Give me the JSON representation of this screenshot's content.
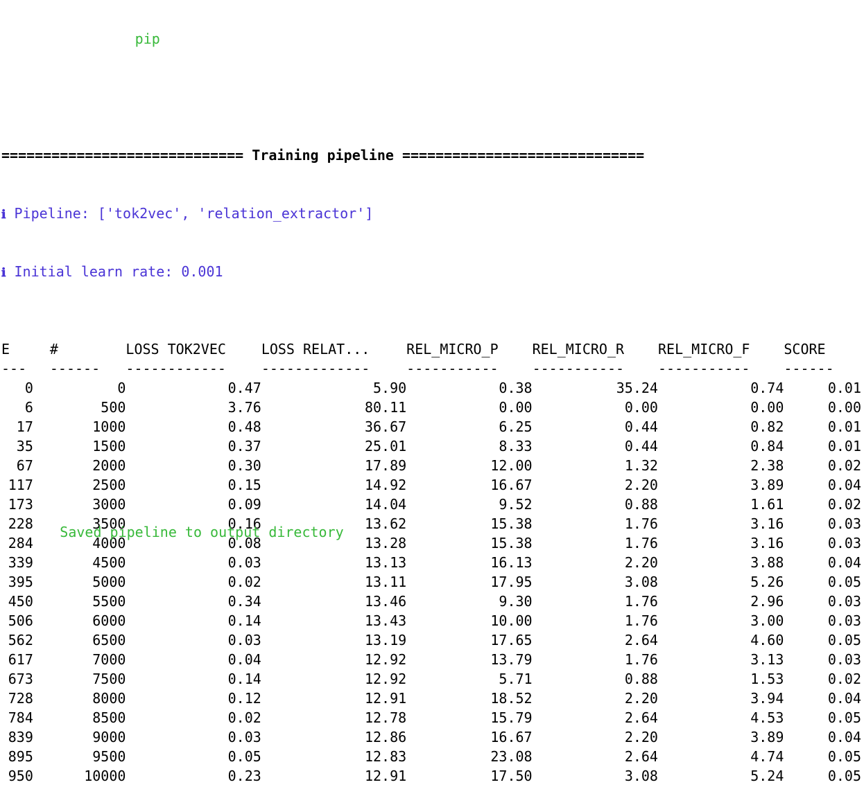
{
  "terminal": {
    "top_partial": "                pip",
    "section_rule": "============================= Training pipeline =============================",
    "pipeline_info": "Pipeline: ['tok2vec', 'relation_extractor']",
    "learn_rate_info": "Initial learn rate: 0.001",
    "info_icon": "ℹ",
    "bottom_partial": "       Saved pipeline to output directory"
  },
  "table": {
    "headers": [
      "E",
      "#",
      "LOSS TOK2VEC",
      "LOSS RELAT...",
      "REL_MICRO_P",
      "REL_MICRO_R",
      "REL_MICRO_F",
      "SCORE"
    ],
    "dashes": [
      "---",
      "------",
      "------------",
      "-------------",
      "-----------",
      "-----------",
      "-----------",
      "------"
    ],
    "rows": [
      [
        "0",
        "0",
        "0.47",
        "5.90",
        "0.38",
        "35.24",
        "0.74",
        "0.01"
      ],
      [
        "6",
        "500",
        "3.76",
        "80.11",
        "0.00",
        "0.00",
        "0.00",
        "0.00"
      ],
      [
        "17",
        "1000",
        "0.48",
        "36.67",
        "6.25",
        "0.44",
        "0.82",
        "0.01"
      ],
      [
        "35",
        "1500",
        "0.37",
        "25.01",
        "8.33",
        "0.44",
        "0.84",
        "0.01"
      ],
      [
        "67",
        "2000",
        "0.30",
        "17.89",
        "12.00",
        "1.32",
        "2.38",
        "0.02"
      ],
      [
        "117",
        "2500",
        "0.15",
        "14.92",
        "16.67",
        "2.20",
        "3.89",
        "0.04"
      ],
      [
        "173",
        "3000",
        "0.09",
        "14.04",
        "9.52",
        "0.88",
        "1.61",
        "0.02"
      ],
      [
        "228",
        "3500",
        "0.16",
        "13.62",
        "15.38",
        "1.76",
        "3.16",
        "0.03"
      ],
      [
        "284",
        "4000",
        "0.08",
        "13.28",
        "15.38",
        "1.76",
        "3.16",
        "0.03"
      ],
      [
        "339",
        "4500",
        "0.03",
        "13.13",
        "16.13",
        "2.20",
        "3.88",
        "0.04"
      ],
      [
        "395",
        "5000",
        "0.02",
        "13.11",
        "17.95",
        "3.08",
        "5.26",
        "0.05"
      ],
      [
        "450",
        "5500",
        "0.34",
        "13.46",
        "9.30",
        "1.76",
        "2.96",
        "0.03"
      ],
      [
        "506",
        "6000",
        "0.14",
        "13.43",
        "10.00",
        "1.76",
        "3.00",
        "0.03"
      ],
      [
        "562",
        "6500",
        "0.03",
        "13.19",
        "17.65",
        "2.64",
        "4.60",
        "0.05"
      ],
      [
        "617",
        "7000",
        "0.04",
        "12.92",
        "13.79",
        "1.76",
        "3.13",
        "0.03"
      ],
      [
        "673",
        "7500",
        "0.14",
        "12.92",
        "5.71",
        "0.88",
        "1.53",
        "0.02"
      ],
      [
        "728",
        "8000",
        "0.12",
        "12.91",
        "18.52",
        "2.20",
        "3.94",
        "0.04"
      ],
      [
        "784",
        "8500",
        "0.02",
        "12.78",
        "15.79",
        "2.64",
        "4.53",
        "0.05"
      ],
      [
        "839",
        "9000",
        "0.03",
        "12.86",
        "16.67",
        "2.20",
        "3.89",
        "0.04"
      ],
      [
        "895",
        "9500",
        "0.05",
        "12.83",
        "23.08",
        "2.64",
        "4.74",
        "0.05"
      ],
      [
        "950",
        "10000",
        "0.23",
        "12.91",
        "17.50",
        "3.08",
        "5.24",
        "0.05"
      ]
    ]
  },
  "colors": {
    "info": "#4a34d6",
    "success": "#38b93a",
    "text": "#000000",
    "background": "#ffffff"
  }
}
